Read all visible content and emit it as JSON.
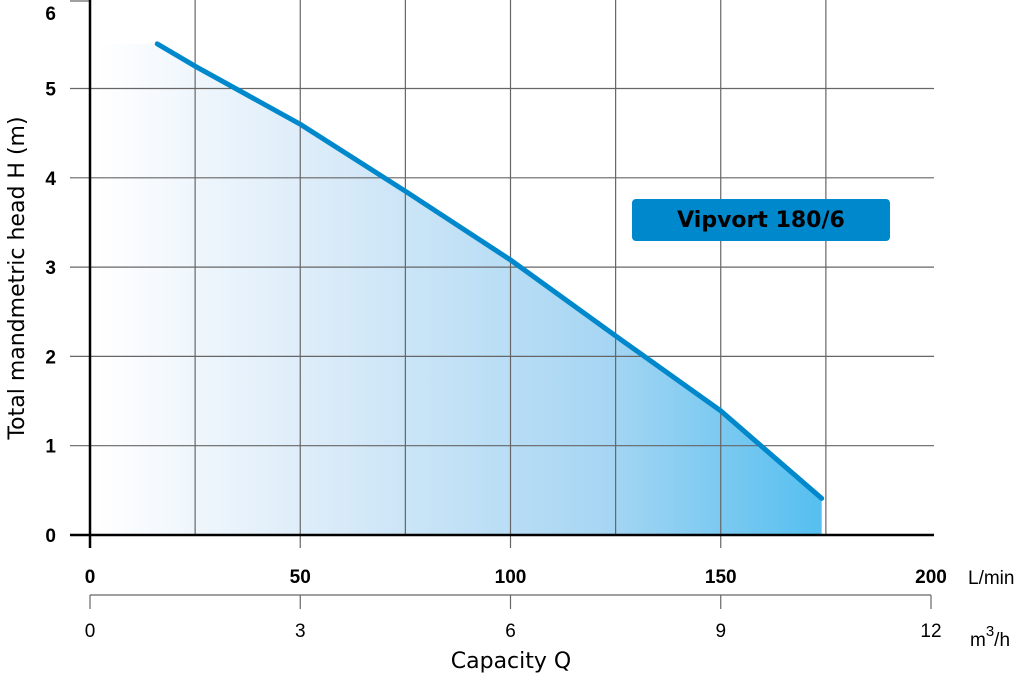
{
  "chart_data": {
    "type": "area",
    "title": "",
    "legend": [
      "Vipvort 180/6"
    ],
    "xlabel": "Capacity Q",
    "ylabel": "Total mandmetric head H (m)",
    "x_unit_primary": "L/min",
    "x_unit_secondary": "m3/h",
    "xlim": [
      0,
      200
    ],
    "ylim": [
      0,
      6
    ],
    "x_ticks_primary": [
      "0",
      "50",
      "100",
      "150",
      "200"
    ],
    "x_ticks_secondary": [
      "0",
      "3",
      "6",
      "9",
      "12"
    ],
    "y_ticks": [
      "0",
      "1",
      "2",
      "3",
      "4",
      "5",
      "6"
    ],
    "grid": true,
    "series": [
      {
        "name": "Vipvort 180/6",
        "color": "#0088cc",
        "x": [
          16,
          25,
          50,
          75,
          100,
          125,
          150,
          174
        ],
        "y": [
          5.5,
          5.25,
          4.6,
          3.85,
          3.08,
          2.23,
          1.39,
          0.41
        ]
      }
    ]
  },
  "labels": {
    "ylabel": "Total mandmetric head H (m)",
    "xlabel": "Capacity Q",
    "unit_primary": "L/min",
    "unit_secondary_base": "m",
    "unit_secondary_sup": "3",
    "unit_secondary_tail": "/h",
    "legend": "Vipvort 180/6",
    "y_ticks": [
      "0",
      "1",
      "2",
      "3",
      "4",
      "5",
      "6"
    ],
    "x_ticks_primary": [
      "0",
      "50",
      "100",
      "150",
      "200"
    ],
    "x_ticks_secondary": [
      "0",
      "3",
      "6",
      "9",
      "12"
    ]
  }
}
